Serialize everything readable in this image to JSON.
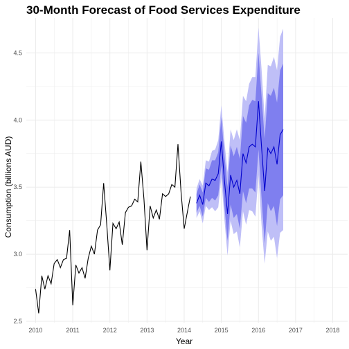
{
  "chart_data": {
    "type": "line",
    "title": "30-Month Forecast of Food Services Expenditure",
    "xlabel": "Year",
    "ylabel": "Consumption (billions AUD)",
    "xlim": [
      2009.75,
      2018.4
    ],
    "ylim": [
      2.49,
      4.76
    ],
    "x_ticks": [
      2010,
      2011,
      2012,
      2013,
      2014,
      2015,
      2016,
      2017,
      2018
    ],
    "x_tick_labels": [
      "2010",
      "2011",
      "2012",
      "2013",
      "2014",
      "2015",
      "2016",
      "2017",
      "2018"
    ],
    "y_ticks": [
      2.5,
      3.0,
      3.5,
      4.0,
      4.5
    ],
    "y_tick_labels": [
      "2.5",
      "3.0",
      "3.5",
      "4.0",
      "4.5"
    ],
    "grid": true,
    "colors": {
      "actual": "#000000",
      "forecast": "#0000cc",
      "pi80": "#7f7fef",
      "pi95": "#bfbff7",
      "grid": "#ebebeb"
    },
    "series": [
      {
        "kind": "actual",
        "x": [
          2010.0,
          2010.083,
          2010.167,
          2010.25,
          2010.333,
          2010.417,
          2010.5,
          2010.583,
          2010.667,
          2010.75,
          2010.833,
          2010.917,
          2011.0,
          2011.083,
          2011.167,
          2011.25,
          2011.333,
          2011.417,
          2011.5,
          2011.583,
          2011.667,
          2011.75,
          2011.833,
          2011.917,
          2012.0,
          2012.083,
          2012.167,
          2012.25,
          2012.333,
          2012.417,
          2012.5,
          2012.583,
          2012.667,
          2012.75,
          2012.833,
          2012.917,
          2013.0,
          2013.083,
          2013.167,
          2013.25,
          2013.333,
          2013.417,
          2013.5,
          2013.583,
          2013.667,
          2013.75,
          2013.833,
          2013.917,
          2014.0,
          2014.083,
          2014.167
        ],
        "y": [
          2.74,
          2.56,
          2.84,
          2.74,
          2.84,
          2.78,
          2.93,
          2.96,
          2.9,
          2.96,
          2.97,
          3.18,
          2.62,
          2.92,
          2.86,
          2.9,
          2.82,
          2.97,
          3.06,
          3.0,
          3.18,
          3.22,
          3.53,
          3.22,
          2.88,
          3.23,
          3.19,
          3.24,
          3.07,
          3.31,
          3.35,
          3.36,
          3.41,
          3.39,
          3.69,
          3.41,
          3.03,
          3.36,
          3.27,
          3.33,
          3.26,
          3.45,
          3.43,
          3.45,
          3.52,
          3.5,
          3.82,
          3.46,
          3.19,
          3.31,
          3.43
        ]
      },
      {
        "kind": "forecast",
        "x": [
          2014.333,
          2014.417,
          2014.5,
          2014.583,
          2014.667,
          2014.75,
          2014.833,
          2014.917,
          2015.0,
          2015.083,
          2015.167,
          2015.25,
          2015.333,
          2015.417,
          2015.5,
          2015.583,
          2015.667,
          2015.75,
          2015.833,
          2015.917,
          2016.0,
          2016.083,
          2016.167,
          2016.25,
          2016.333,
          2016.417,
          2016.5,
          2016.583,
          2016.667
        ],
        "y": [
          3.38,
          3.44,
          3.37,
          3.53,
          3.51,
          3.56,
          3.55,
          3.6,
          3.84,
          3.55,
          3.3,
          3.59,
          3.5,
          3.55,
          3.45,
          3.75,
          3.68,
          3.8,
          3.82,
          3.8,
          4.14,
          3.8,
          3.47,
          3.79,
          3.75,
          3.8,
          3.67,
          3.89,
          3.93
        ],
        "lo80": [
          3.31,
          3.36,
          3.28,
          3.42,
          3.39,
          3.42,
          3.4,
          3.44,
          3.66,
          3.36,
          3.1,
          3.37,
          3.27,
          3.3,
          3.19,
          3.47,
          3.38,
          3.49,
          3.49,
          3.46,
          3.78,
          3.42,
          3.08,
          3.38,
          3.32,
          3.36,
          3.21,
          3.41,
          3.44
        ],
        "hi80": [
          3.45,
          3.52,
          3.46,
          3.64,
          3.63,
          3.7,
          3.7,
          3.76,
          4.02,
          3.74,
          3.5,
          3.81,
          3.73,
          3.8,
          3.71,
          4.03,
          3.98,
          4.11,
          4.15,
          4.14,
          4.5,
          4.18,
          3.86,
          4.2,
          4.18,
          4.24,
          4.13,
          4.37,
          4.42
        ],
        "lo95": [
          3.27,
          3.32,
          3.23,
          3.36,
          3.33,
          3.35,
          3.32,
          3.35,
          3.57,
          3.26,
          2.99,
          3.25,
          3.15,
          3.17,
          3.05,
          3.32,
          3.22,
          3.33,
          3.32,
          3.28,
          3.59,
          3.22,
          2.93,
          3.17,
          3.1,
          3.13,
          2.97,
          3.16,
          3.18
        ],
        "hi95": [
          3.49,
          3.56,
          3.51,
          3.7,
          3.69,
          3.77,
          3.78,
          3.85,
          4.11,
          3.84,
          3.61,
          3.93,
          3.85,
          3.93,
          3.85,
          4.18,
          4.14,
          4.27,
          4.32,
          4.32,
          4.69,
          4.38,
          4.01,
          4.41,
          4.4,
          4.47,
          4.37,
          4.62,
          4.68
        ]
      }
    ]
  }
}
